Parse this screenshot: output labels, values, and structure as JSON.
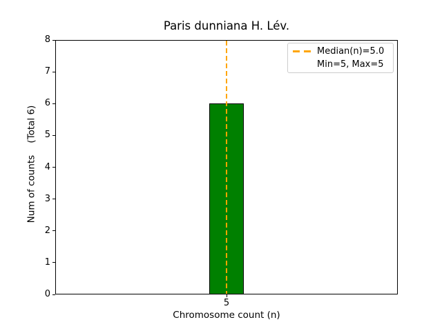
{
  "chart_data": {
    "type": "bar",
    "title": "Paris dunniana H. Lév.",
    "xlabel": "Chromosome count (n)",
    "ylabel": "Num of counts    (Total 6)",
    "categories": [
      "5"
    ],
    "values": [
      6
    ],
    "total_counts": 6,
    "ylim": [
      0,
      8
    ],
    "yticks": [
      "0",
      "1",
      "2",
      "3",
      "4",
      "5",
      "6",
      "7",
      "8"
    ],
    "xticks": [
      "5"
    ],
    "grid": false,
    "bar_color": "#008000",
    "bar_edge_color": "#000000",
    "median_line": {
      "value": 5.0,
      "color": "#FFA500",
      "linestyle": "dashed"
    },
    "legend": {
      "position": "upper right",
      "entries": [
        {
          "label": "Median(n)=5.0",
          "handle": "dashed-line",
          "color": "#FFA500"
        },
        {
          "label": "Min=5, Max=5",
          "handle": "none",
          "color": ""
        }
      ]
    }
  }
}
